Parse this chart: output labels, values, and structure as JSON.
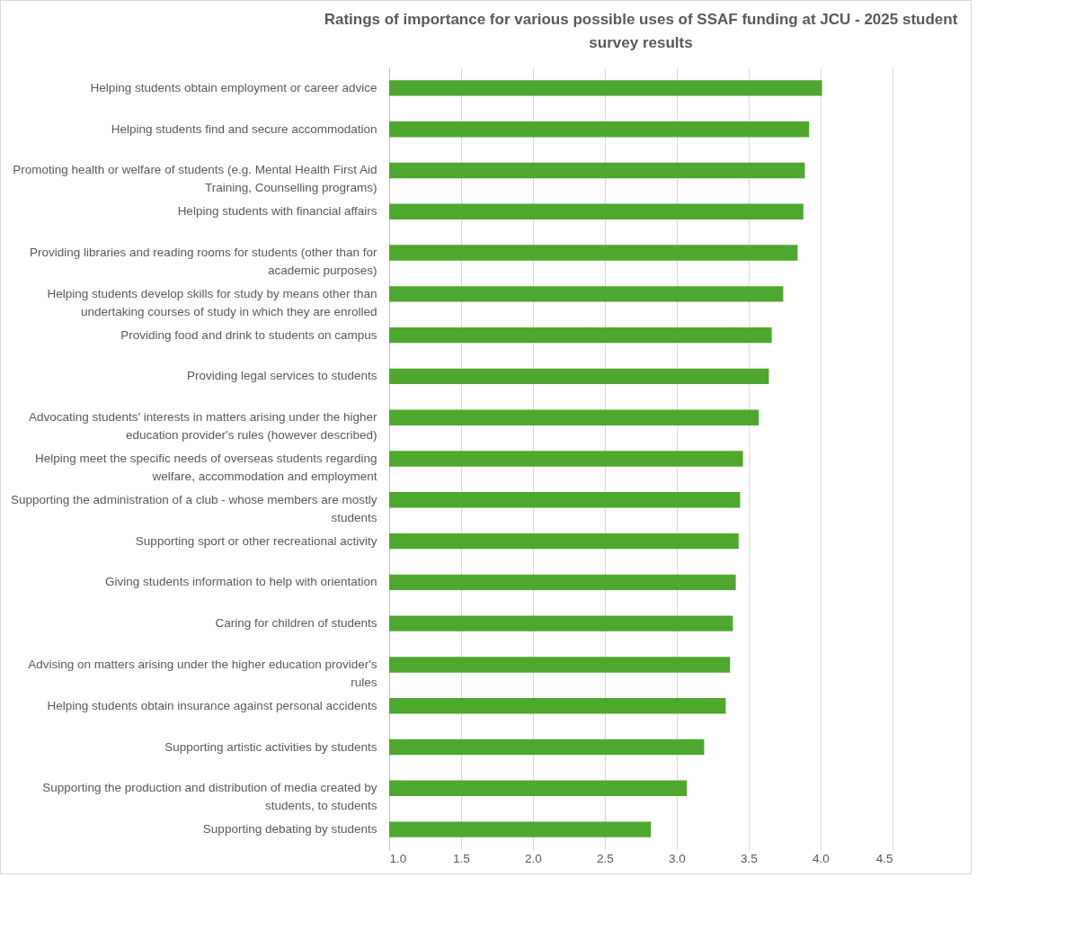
{
  "chart_data": {
    "type": "bar",
    "orientation": "horizontal",
    "title": "Ratings of importance for various possible uses of SSAF funding at JCU - 2025 student survey results",
    "categories": [
      "Helping students obtain employment or career advice",
      "Helping students find and secure accommodation",
      "Promoting health or welfare of students  (e.g. Mental Health First Aid Training, Counselling programs)",
      "Helping students with financial affairs",
      "Providing libraries and reading rooms for students (other than for academic purposes)",
      "Helping students develop skills for study by means other than undertaking courses of study in which they are enrolled",
      "Providing food and drink to students on campus",
      "Providing legal services to students",
      "Advocating students' interests in matters arising under the higher education provider's rules (however described)",
      "Helping meet the specific needs of overseas students regarding welfare, accommodation and employment",
      "Supporting the administration of a club - whose members are mostly students",
      "Supporting sport or other recreational activity",
      "Giving students information to help with orientation",
      "Caring for children of students",
      "Advising on matters arising under the higher education provider's rules",
      "Helping students obtain insurance against personal accidents",
      "Supporting artistic activities by students",
      "Supporting the production and distribution of media created by students, to students",
      "Supporting debating by students"
    ],
    "values": [
      4.01,
      3.92,
      3.89,
      3.88,
      3.84,
      3.74,
      3.66,
      3.64,
      3.57,
      3.46,
      3.44,
      3.43,
      3.41,
      3.39,
      3.37,
      3.34,
      3.19,
      3.07,
      2.82
    ],
    "color": "#4ea72e",
    "xlim": [
      1,
      4.5
    ],
    "xticks": [
      {
        "value": 1,
        "label": "1.0"
      },
      {
        "value": 1.5,
        "label": "1.5"
      },
      {
        "value": 2,
        "label": "2.0"
      },
      {
        "value": 2.5,
        "label": "2.5"
      },
      {
        "value": 3,
        "label": "3.0"
      },
      {
        "value": 3.5,
        "label": "3.5"
      },
      {
        "value": 4,
        "label": "4.0"
      },
      {
        "value": 4.5,
        "label": "4.5"
      }
    ],
    "grid": "x"
  }
}
